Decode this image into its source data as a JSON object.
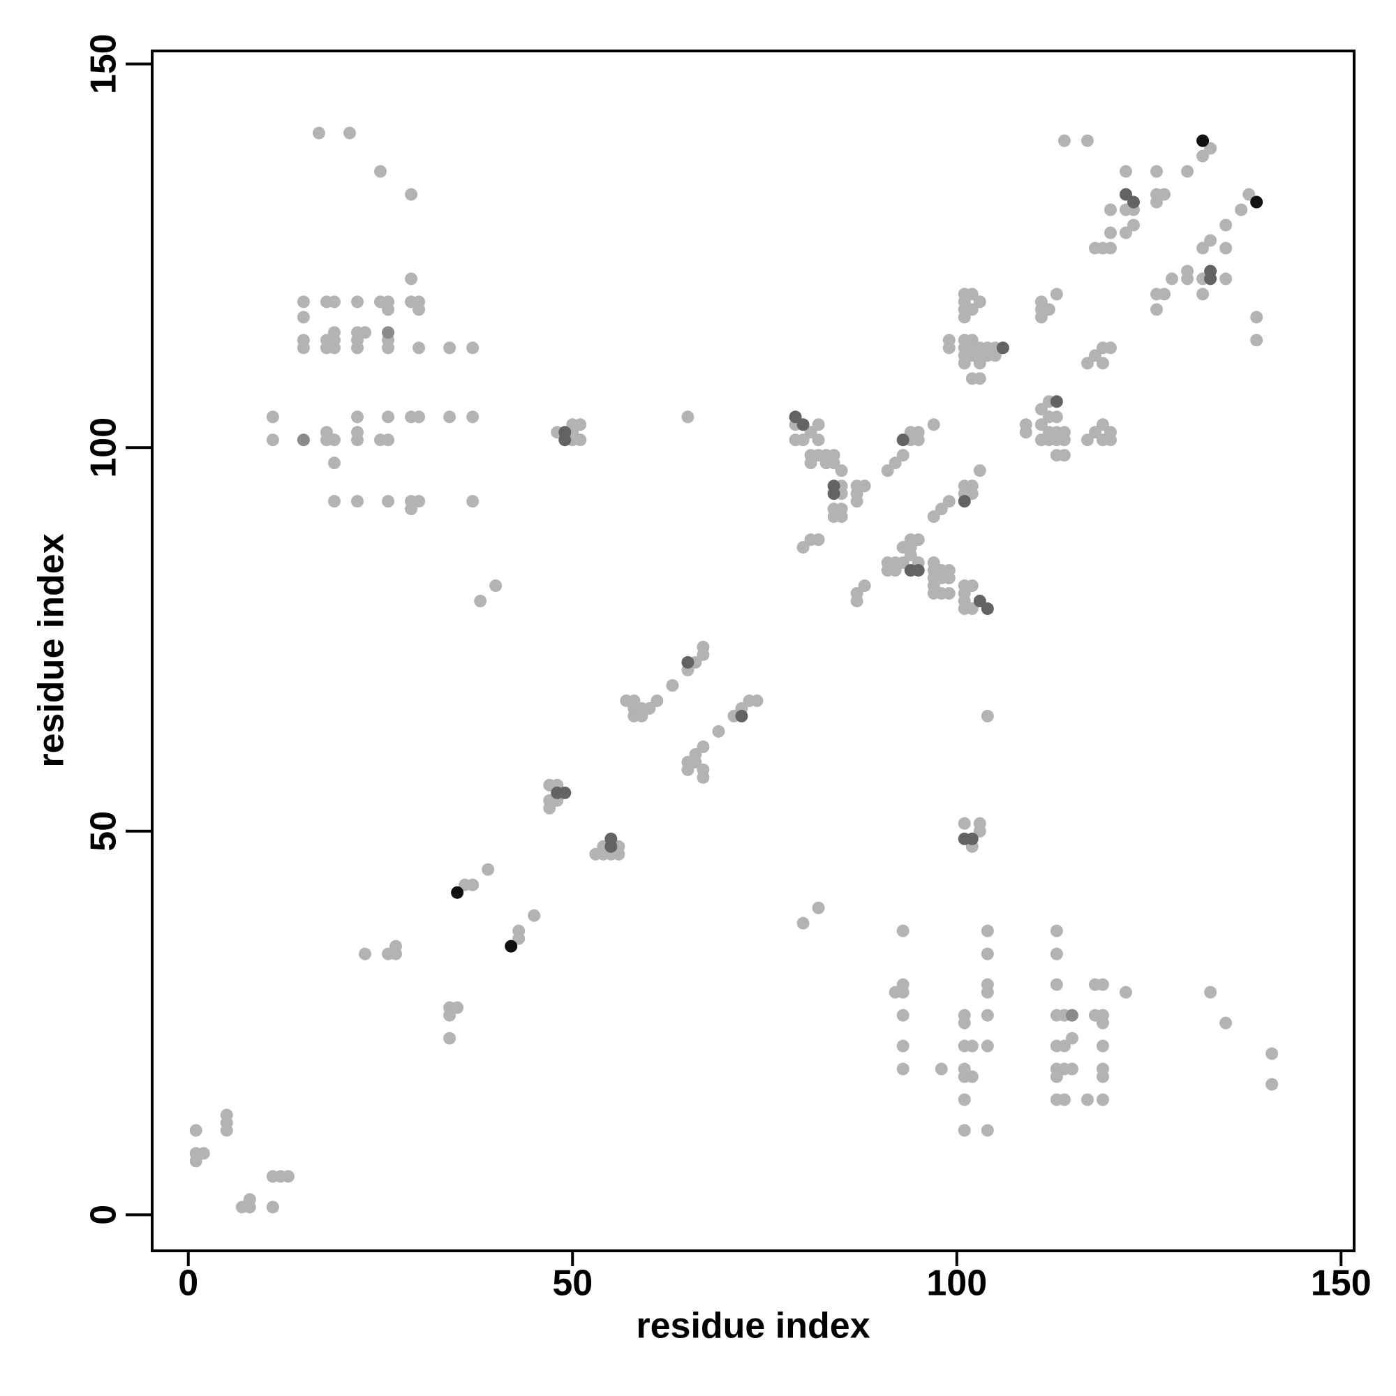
{
  "chart_data": {
    "type": "scatter",
    "xlabel": "residue index",
    "ylabel": "residue index",
    "xlim": [
      -4.7,
      151.7
    ],
    "ylim": [
      -4.7,
      151.7
    ],
    "xticks": [
      0,
      50,
      100,
      150
    ],
    "yticks": [
      0,
      50,
      100,
      150
    ],
    "series": [
      {
        "color": "#b3b3b3",
        "x": [
          1,
          1,
          1,
          2,
          5,
          5,
          5,
          7,
          8,
          8,
          11,
          11,
          12,
          13,
          23,
          26,
          27,
          27,
          34,
          35,
          34,
          34,
          36,
          37,
          39,
          43,
          43,
          45,
          38,
          40,
          47,
          48,
          47,
          47,
          48,
          53,
          54,
          54,
          56,
          56,
          55,
          57,
          58,
          58,
          59,
          58,
          59,
          60,
          61,
          63,
          65,
          66,
          67,
          67,
          65,
          65,
          66,
          66,
          67,
          67,
          67,
          69,
          71,
          72,
          73,
          74,
          65,
          17,
          21,
          25,
          29,
          29,
          15,
          18,
          19,
          22,
          25,
          26,
          29,
          30,
          26,
          30,
          15,
          19,
          22,
          23,
          15,
          15,
          18,
          19,
          18,
          19,
          22,
          22,
          26,
          26,
          30,
          34,
          37,
          11,
          11,
          18,
          19,
          18,
          22,
          22,
          22,
          25,
          26,
          26,
          29,
          30,
          34,
          37,
          19,
          19,
          22,
          26,
          29,
          29,
          30,
          37,
          48,
          50,
          51,
          50,
          51,
          50,
          79,
          79,
          80,
          81,
          82,
          82,
          81,
          82,
          83,
          84,
          81,
          83,
          84,
          85,
          85,
          85,
          85,
          85,
          84,
          84,
          87,
          88,
          87,
          87,
          80,
          81,
          82,
          87,
          87,
          88,
          91,
          92,
          93,
          94,
          95,
          94,
          95,
          97,
          97,
          98,
          99,
          101,
          102,
          101,
          102,
          103,
          91,
          92,
          93,
          91,
          92,
          93,
          94,
          94,
          95,
          94,
          95,
          97,
          97,
          97,
          97,
          97,
          98,
          99,
          98,
          99,
          98,
          99,
          101,
          102,
          101,
          101,
          101,
          102,
          104,
          101,
          103,
          102,
          103,
          101,
          102,
          103,
          101,
          101,
          102,
          101,
          99,
          99,
          101,
          102,
          101,
          102,
          103,
          104,
          105,
          101,
          102,
          103,
          104,
          101,
          103,
          105,
          102,
          103,
          109,
          109,
          111,
          111,
          111,
          112,
          112,
          113,
          112,
          113,
          114,
          112,
          113,
          114,
          113,
          114,
          111,
          111,
          112,
          113,
          111,
          117,
          118,
          119,
          120,
          120,
          119,
          117,
          118,
          119,
          120,
          119,
          118,
          119,
          120,
          120,
          122,
          123,
          122,
          123,
          120,
          122,
          126,
          130,
          126,
          127,
          126,
          126,
          127,
          126,
          128,
          130,
          130,
          132,
          132,
          133,
          132,
          135,
          135,
          135,
          137,
          138,
          139,
          139,
          132,
          133,
          114,
          117,
          80,
          82,
          93,
          92,
          93,
          93,
          93,
          93,
          93,
          98,
          101,
          101,
          101,
          102,
          101,
          101,
          102,
          101,
          101,
          104,
          104,
          104,
          104,
          104,
          104,
          104,
          113,
          113,
          113,
          113,
          114,
          113,
          114,
          115,
          113,
          114,
          115,
          113,
          113,
          114,
          117,
          118,
          119,
          118,
          119,
          119,
          119,
          119,
          119,
          119,
          122,
          133,
          135,
          141,
          141
        ],
        "values": [
          11,
          7,
          8,
          8,
          13,
          12,
          11,
          1,
          2,
          1,
          1,
          5,
          5,
          5,
          34,
          34,
          35,
          34,
          27,
          27,
          26,
          23,
          43,
          43,
          45,
          37,
          36,
          39,
          80,
          82,
          56,
          56,
          54,
          53,
          54,
          47,
          47,
          48,
          48,
          47,
          47,
          67,
          67,
          66,
          66,
          65,
          65,
          66,
          67,
          69,
          71,
          72,
          73,
          74,
          59,
          58,
          59,
          60,
          61,
          58,
          57,
          63,
          65,
          66,
          67,
          67,
          104,
          141,
          141,
          136,
          133,
          122,
          119,
          119,
          119,
          119,
          119,
          119,
          119,
          119,
          118,
          118,
          117,
          115,
          115,
          115,
          114,
          113,
          114,
          114,
          113,
          113,
          114,
          113,
          114,
          113,
          113,
          113,
          113,
          104,
          101,
          102,
          101,
          101,
          104,
          102,
          101,
          101,
          101,
          104,
          104,
          104,
          104,
          104,
          98,
          93,
          93,
          93,
          93,
          92,
          93,
          93,
          102,
          103,
          103,
          101,
          101,
          102,
          103,
          101,
          101,
          102,
          103,
          101,
          99,
          99,
          99,
          99,
          98,
          98,
          98,
          97,
          95,
          94,
          92,
          91,
          91,
          92,
          95,
          95,
          94,
          93,
          87,
          88,
          88,
          81,
          80,
          82,
          97,
          98,
          99,
          102,
          102,
          101,
          101,
          103,
          91,
          92,
          93,
          95,
          95,
          94,
          94,
          97,
          85,
          85,
          85,
          84,
          84,
          87,
          87,
          88,
          88,
          86,
          85,
          85,
          84,
          83,
          82,
          81,
          84,
          84,
          83,
          83,
          81,
          81,
          82,
          82,
          81,
          80,
          79,
          79,
          65,
          51,
          51,
          48,
          50,
          120,
          120,
          119,
          119,
          118,
          118,
          117,
          114,
          113,
          114,
          114,
          113,
          113,
          113,
          113,
          113,
          112,
          112,
          112,
          112,
          111,
          111,
          112,
          109,
          109,
          103,
          102,
          105,
          103,
          101,
          106,
          104,
          104,
          102,
          102,
          102,
          101,
          101,
          101,
          99,
          99,
          119,
          117,
          118,
          120,
          118,
          101,
          102,
          103,
          102,
          101,
          101,
          111,
          112,
          113,
          113,
          111,
          126,
          126,
          126,
          128,
          128,
          129,
          131,
          131,
          131,
          136,
          136,
          136,
          133,
          133,
          132,
          120,
          120,
          118,
          122,
          123,
          122,
          122,
          126,
          127,
          120,
          122,
          126,
          129,
          131,
          133,
          117,
          114,
          138,
          139,
          140,
          140,
          38,
          40,
          37,
          29,
          29,
          30,
          26,
          22,
          19,
          19,
          26,
          25,
          22,
          22,
          19,
          18,
          18,
          15,
          11,
          11,
          37,
          34,
          30,
          29,
          26,
          22,
          37,
          34,
          30,
          26,
          26,
          22,
          22,
          23,
          19,
          19,
          19,
          18,
          15,
          15,
          15,
          30,
          30,
          26,
          26,
          25,
          22,
          19,
          18,
          15,
          29,
          29,
          25,
          21,
          17
        ]
      },
      {
        "color": "#8a8a8a",
        "x": [
          15,
          26,
          115
        ],
        "values": [
          101,
          115,
          26
        ]
      },
      {
        "color": "#636363",
        "x": [
          49,
          49,
          48,
          49,
          55,
          55,
          65,
          72,
          79,
          80,
          84,
          84,
          93,
          101,
          94,
          95,
          103,
          104,
          101,
          102,
          106,
          113,
          122,
          123,
          133,
          133
        ],
        "values": [
          102,
          101,
          55,
          55,
          49,
          48,
          72,
          65,
          104,
          103,
          95,
          94,
          101,
          93,
          84,
          84,
          80,
          79,
          49,
          49,
          113,
          106,
          133,
          132,
          123,
          122
        ]
      },
      {
        "color": "#111111",
        "x": [
          35,
          42,
          132,
          139
        ],
        "values": [
          42,
          35,
          140,
          132
        ]
      }
    ]
  }
}
